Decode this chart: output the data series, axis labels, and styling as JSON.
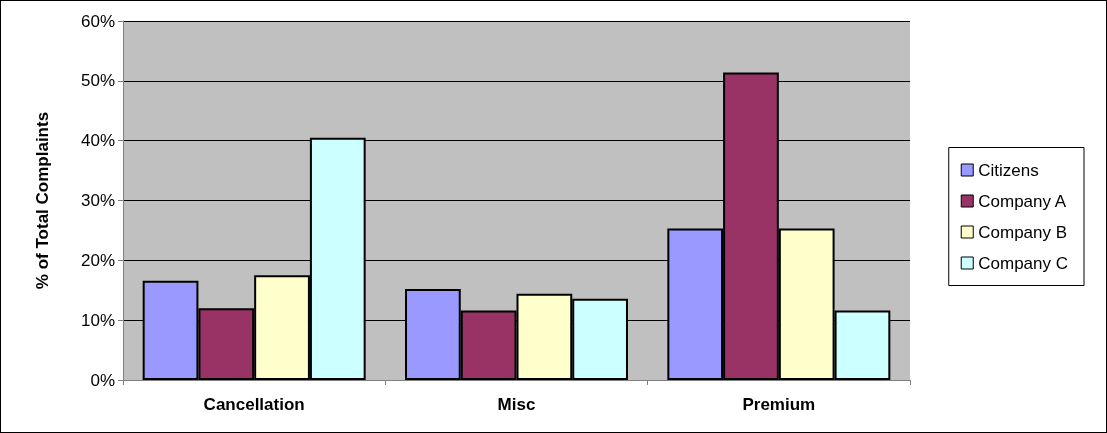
{
  "chart_data": {
    "type": "bar",
    "ylabel": "% of Total Complaints",
    "categories": [
      "Cancellation",
      "Misc",
      "Premium"
    ],
    "series": [
      {
        "name": "Citizens",
        "color": "#9999ff",
        "values": [
          16.6,
          15.2,
          25.3
        ]
      },
      {
        "name": "Company A",
        "color": "#993366",
        "values": [
          12.0,
          11.6,
          51.4
        ]
      },
      {
        "name": "Company B",
        "color": "#ffffcc",
        "values": [
          17.5,
          14.4,
          25.3
        ]
      },
      {
        "name": "Company C",
        "color": "#ccffff",
        "values": [
          40.5,
          13.6,
          11.6
        ]
      }
    ],
    "ylim": [
      0,
      60
    ],
    "yticks": [
      {
        "value": 0,
        "label": "0%"
      },
      {
        "value": 10,
        "label": "10%"
      },
      {
        "value": 20,
        "label": "20%"
      },
      {
        "value": 30,
        "label": "30%"
      },
      {
        "value": 40,
        "label": "40%"
      },
      {
        "value": 50,
        "label": "50%"
      },
      {
        "value": 60,
        "label": "60%"
      }
    ],
    "grid": "y",
    "legend": "right"
  }
}
